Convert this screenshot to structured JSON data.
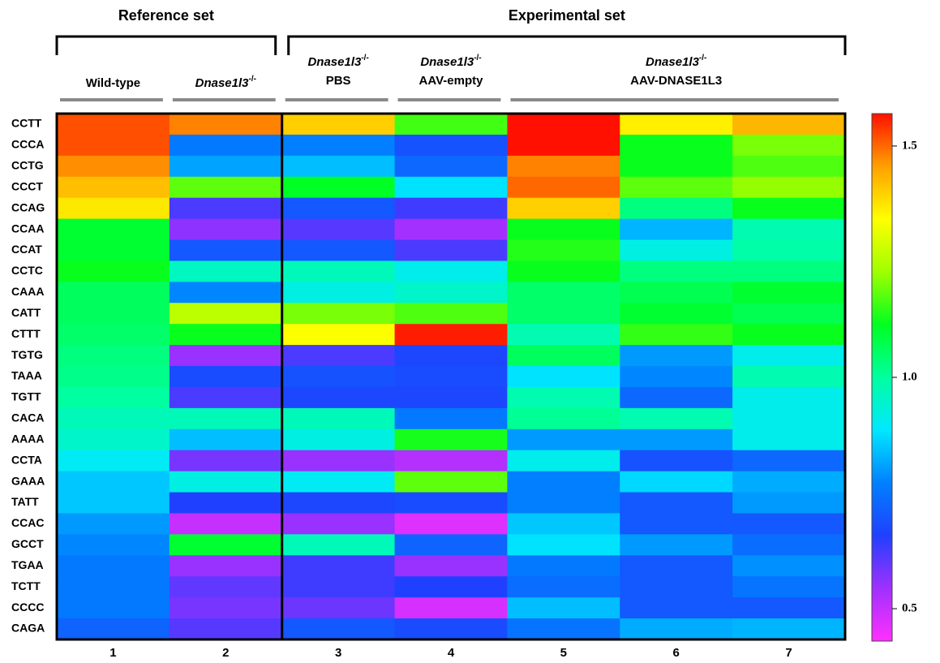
{
  "chart_data": {
    "type": "heatmap",
    "rows": [
      "CCTT",
      "CCCA",
      "CCTG",
      "CCCT",
      "CCAG",
      "CCAA",
      "CCAT",
      "CCTC",
      "CAAA",
      "CATT",
      "CTTT",
      "TGTG",
      "TAAA",
      "TGTT",
      "CACA",
      "AAAA",
      "CCTA",
      "GAAA",
      "TATT",
      "CCAC",
      "GCCT",
      "TGAA",
      "TCTT",
      "CCCC",
      "CAGA"
    ],
    "groups": [
      {
        "title": "Reference set",
        "subgroups": [
          {
            "label": "Wild-type",
            "columns": [
              "1"
            ]
          },
          {
            "gene": "Dnase1l3",
            "sup": "-/-",
            "columns": [
              "2"
            ]
          }
        ]
      },
      {
        "title": "Experimental set",
        "subgroups": [
          {
            "gene": "Dnase1l3",
            "sup": "-/-",
            "treatment": "PBS",
            "columns": [
              "3"
            ]
          },
          {
            "gene": "Dnase1l3",
            "sup": "-/-",
            "treatment": "AAV-empty",
            "columns": [
              "4"
            ]
          },
          {
            "gene": "Dnase1l3",
            "sup": "-/-",
            "treatment": "AAV-DNASE1L3",
            "columns": [
              "5",
              "6",
              "7"
            ]
          }
        ]
      }
    ],
    "values": [
      [
        1.52,
        1.48,
        1.4,
        1.16,
        1.57,
        1.36,
        1.43
      ],
      [
        1.52,
        0.76,
        0.77,
        0.69,
        1.57,
        1.12,
        1.2
      ],
      [
        1.47,
        0.81,
        0.84,
        0.73,
        1.48,
        1.12,
        1.17
      ],
      [
        1.42,
        1.18,
        1.11,
        0.88,
        1.5,
        1.18,
        1.22
      ],
      [
        1.37,
        0.62,
        0.7,
        0.63,
        1.4,
        1.03,
        1.12
      ],
      [
        1.1,
        0.56,
        0.61,
        0.54,
        1.12,
        0.83,
        0.98
      ],
      [
        1.1,
        0.7,
        0.7,
        0.62,
        1.14,
        0.92,
        0.99
      ],
      [
        1.12,
        0.96,
        0.97,
        0.91,
        1.12,
        1.03,
        1.03
      ],
      [
        1.06,
        0.78,
        0.92,
        0.95,
        1.05,
        1.07,
        1.1
      ],
      [
        1.06,
        1.26,
        1.2,
        1.17,
        1.05,
        1.1,
        1.07
      ],
      [
        1.05,
        1.12,
        1.34,
        1.56,
        0.98,
        1.15,
        1.12
      ],
      [
        1.03,
        0.55,
        0.62,
        0.67,
        1.06,
        0.8,
        0.91
      ],
      [
        1.02,
        0.68,
        0.69,
        0.68,
        0.88,
        0.78,
        0.98
      ],
      [
        1.0,
        0.62,
        0.67,
        0.67,
        0.98,
        0.73,
        0.91
      ],
      [
        0.97,
        0.97,
        0.97,
        0.76,
        1.01,
        0.98,
        0.91
      ],
      [
        0.95,
        0.84,
        0.92,
        1.13,
        0.8,
        0.8,
        0.91
      ],
      [
        0.9,
        0.58,
        0.55,
        0.52,
        0.91,
        0.69,
        0.73
      ],
      [
        0.85,
        0.92,
        0.9,
        1.18,
        0.77,
        0.87,
        0.82
      ],
      [
        0.85,
        0.66,
        0.67,
        0.68,
        0.77,
        0.7,
        0.8
      ],
      [
        0.8,
        0.5,
        0.55,
        0.47,
        0.85,
        0.7,
        0.7
      ],
      [
        0.78,
        1.1,
        0.97,
        0.72,
        0.88,
        0.8,
        0.74
      ],
      [
        0.76,
        0.55,
        0.63,
        0.55,
        0.76,
        0.7,
        0.79
      ],
      [
        0.76,
        0.6,
        0.63,
        0.66,
        0.74,
        0.7,
        0.75
      ],
      [
        0.76,
        0.58,
        0.59,
        0.48,
        0.84,
        0.7,
        0.7
      ],
      [
        0.72,
        0.61,
        0.7,
        0.68,
        0.75,
        0.82,
        0.83
      ]
    ],
    "clim": [
      0.43,
      1.57
    ],
    "colorbar_ticks": [
      0.5,
      {
        "value": 1,
        "label": "1.0"
      },
      1.5
    ],
    "colors": [
      "#ff30ff",
      "#a030ff",
      "#2040ff",
      "#0080ff",
      "#00e8ff",
      "#00ffa0",
      "#00ff20",
      "#a0ff00",
      "#ffff00",
      "#ffa000",
      "#ff1000"
    ]
  }
}
